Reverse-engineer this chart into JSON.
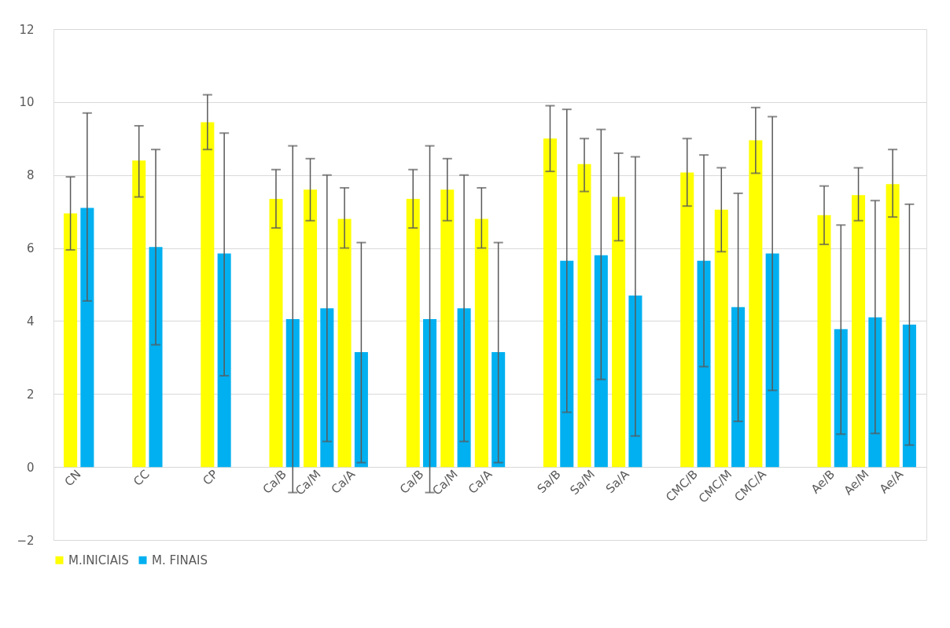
{
  "chart_data": {
    "type": "bar",
    "categories": [
      "CN",
      null,
      "CC",
      null,
      "CP",
      null,
      "Ca/B",
      "Ca/M",
      "Ca/A",
      null,
      "Ca/B",
      "Ca/M",
      "Ca/A",
      null,
      "Sa/B",
      "Sa/M",
      "Sa/A",
      null,
      "CMC/B",
      "CMC/M",
      "CMC/A",
      null,
      "Ae/B",
      "Ae/M",
      "Ae/A"
    ],
    "series": [
      {
        "name": "M.INICIAIS",
        "color": "#ffff00",
        "values": [
          6.95,
          null,
          8.4,
          null,
          9.45,
          null,
          7.35,
          7.6,
          6.8,
          null,
          7.35,
          7.6,
          6.8,
          null,
          9.0,
          8.3,
          7.4,
          null,
          8.07,
          7.05,
          8.95,
          null,
          6.9,
          7.45,
          7.75
        ],
        "errors": [
          [
            5.95,
            7.95
          ],
          null,
          [
            7.4,
            9.35
          ],
          null,
          [
            8.7,
            10.2
          ],
          null,
          [
            6.55,
            8.15
          ],
          [
            6.75,
            8.45
          ],
          [
            6.0,
            7.65
          ],
          null,
          [
            6.55,
            8.15
          ],
          [
            6.75,
            8.45
          ],
          [
            6.0,
            7.65
          ],
          null,
          [
            8.1,
            9.9
          ],
          [
            7.55,
            9.0
          ],
          [
            6.2,
            8.6
          ],
          null,
          [
            7.15,
            9.0
          ],
          [
            5.9,
            8.2
          ],
          [
            8.05,
            9.85
          ],
          null,
          [
            6.1,
            7.7
          ],
          [
            6.75,
            8.2
          ],
          [
            6.85,
            8.7
          ]
        ]
      },
      {
        "name": "M. FINAIS",
        "color": "#00b0f0",
        "values": [
          7.1,
          null,
          6.03,
          null,
          5.85,
          null,
          4.05,
          4.35,
          3.15,
          null,
          4.05,
          4.35,
          3.15,
          null,
          5.65,
          5.8,
          4.7,
          null,
          5.65,
          4.38,
          5.85,
          null,
          3.78,
          4.1,
          3.9
        ],
        "errors": [
          [
            4.55,
            9.7
          ],
          null,
          [
            3.35,
            8.7
          ],
          null,
          [
            2.5,
            9.15
          ],
          null,
          [
            -0.7,
            8.8
          ],
          [
            0.7,
            8.0
          ],
          [
            0.12,
            6.15
          ],
          null,
          [
            -0.7,
            8.8
          ],
          [
            0.7,
            8.0
          ],
          [
            0.12,
            6.15
          ],
          null,
          [
            1.5,
            9.8
          ],
          [
            2.4,
            9.25
          ],
          [
            0.85,
            8.5
          ],
          null,
          [
            2.75,
            8.55
          ],
          [
            1.25,
            7.5
          ],
          [
            2.1,
            9.6
          ],
          null,
          [
            0.9,
            6.63
          ],
          [
            0.92,
            7.3
          ],
          [
            0.6,
            7.2
          ]
        ]
      }
    ],
    "ylim": [
      -2,
      12
    ],
    "yticks": [
      -2,
      0,
      2,
      4,
      6,
      8,
      10,
      12
    ],
    "grid": "y",
    "legend": "bottom"
  }
}
